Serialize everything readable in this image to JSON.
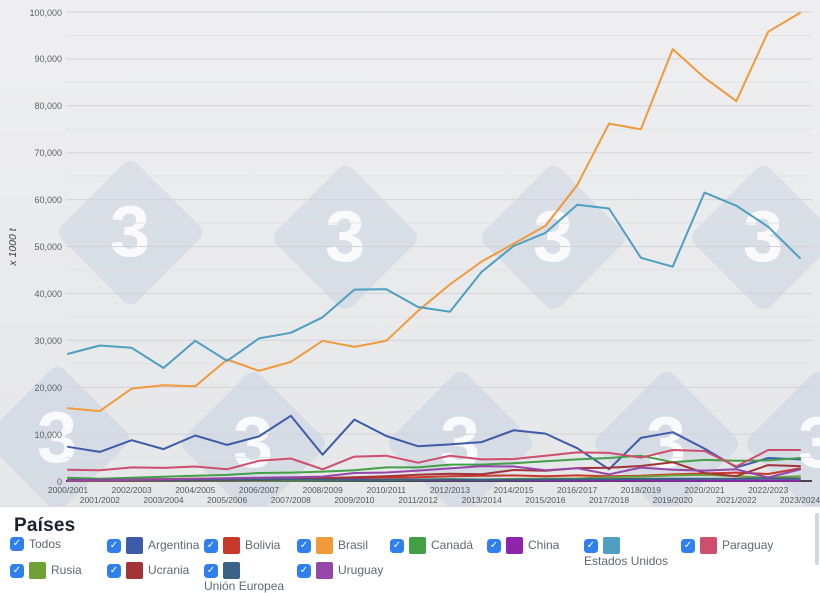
{
  "chart_data": {
    "type": "line",
    "title": "",
    "xlabel": "",
    "ylabel": "x 1000 t",
    "ylim": [
      0,
      100000
    ],
    "y_tick_step": 10000,
    "y_minor_step": 5000,
    "grid": true,
    "legend_position": "bottom",
    "y_tick_labels": [
      "0",
      "10,000",
      "20,000",
      "30,000",
      "40,000",
      "50,000",
      "60,000",
      "70,000",
      "80,000",
      "90,000",
      "100,000"
    ],
    "categories": [
      "2000/2001",
      "2001/2002",
      "2002/2003",
      "2003/2004",
      "2004/2005",
      "2005/2006",
      "2006/2007",
      "2007/2008",
      "2008/2009",
      "2009/2010",
      "2010/2011",
      "2011/2012",
      "2012/2013",
      "2013/2014",
      "2014/2015",
      "2015/2016",
      "2016/2017",
      "2017/2018",
      "2018/2019",
      "2019/2020",
      "2020/2021",
      "2021/2022",
      "2022/2023",
      "2023/2024"
    ],
    "series": [
      {
        "name": "Argentina",
        "color": "#3D5BA9",
        "values": [
          7300,
          6200,
          8700,
          6800,
          9700,
          7700,
          9500,
          13900,
          5600,
          13100,
          9600,
          7400,
          7800,
          8300,
          10800,
          10100,
          7000,
          2500,
          9200,
          10400,
          6900,
          2900,
          4900,
          4600
        ]
      },
      {
        "name": "Bolivia",
        "color": "#C8392B",
        "values": [
          300,
          300,
          400,
          400,
          500,
          500,
          400,
          500,
          600,
          700,
          700,
          800,
          1000,
          1100,
          1200,
          1000,
          1200,
          1000,
          1100,
          1400,
          1600,
          1800,
          1500,
          2700
        ]
      },
      {
        "name": "Brasil",
        "color": "#F09A3C",
        "values": [
          15500,
          14900,
          19700,
          20400,
          20200,
          25900,
          23500,
          25400,
          29900,
          28600,
          29900,
          36300,
          41900,
          46800,
          50600,
          54400,
          63100,
          76200,
          75000,
          92100,
          86000,
          81000,
          95800,
          99800
        ]
      },
      {
        "name": "Canadá",
        "color": "#43A047",
        "values": [
          700,
          500,
          700,
          900,
          1100,
          1300,
          1700,
          1800,
          2000,
          2300,
          2900,
          2900,
          3500,
          3500,
          3800,
          4200,
          4600,
          4900,
          5400,
          4000,
          4500,
          4300,
          4400,
          4900
        ]
      },
      {
        "name": "China",
        "color": "#8E24AA",
        "values": [
          210,
          250,
          270,
          310,
          350,
          380,
          410,
          450,
          390,
          340,
          210,
          250,
          200,
          240,
          160,
          130,
          110,
          130,
          130,
          110,
          80,
          90,
          80,
          90
        ]
      },
      {
        "name": "Estados Unidos",
        "color": "#4E9FC0",
        "values": [
          27100,
          28900,
          28400,
          24100,
          29900,
          25600,
          30400,
          31600,
          34900,
          40800,
          40900,
          37100,
          36100,
          44600,
          50100,
          52900,
          58900,
          58100,
          47600,
          45700,
          61500,
          58700,
          54200,
          47500
        ]
      },
      {
        "name": "Paraguay",
        "color": "#CE4E6E",
        "values": [
          2400,
          2300,
          2900,
          2800,
          3100,
          2500,
          4300,
          4800,
          2500,
          5200,
          5400,
          3900,
          5400,
          4600,
          4700,
          5400,
          6100,
          6000,
          5000,
          6600,
          6400,
          3100,
          6600,
          6600
        ]
      },
      {
        "name": "Rusia",
        "color": "#6FA235",
        "values": [
          20,
          20,
          30,
          40,
          50,
          50,
          60,
          80,
          120,
          160,
          220,
          300,
          420,
          330,
          440,
          520,
          540,
          830,
          940,
          1200,
          1300,
          1000,
          730,
          1020
        ]
      },
      {
        "name": "Ucrania",
        "color": "#A23438",
        "values": [
          50,
          60,
          80,
          100,
          130,
          160,
          210,
          310,
          620,
          810,
          1020,
          1340,
          1560,
          1440,
          2340,
          2200,
          2740,
          2840,
          3200,
          4000,
          1700,
          1050,
          3400,
          3180
        ]
      },
      {
        "name": "Unión Europea",
        "color": "#3A6186",
        "values": [
          150,
          160,
          190,
          210,
          240,
          260,
          290,
          300,
          260,
          210,
          250,
          300,
          310,
          260,
          300,
          350,
          390,
          410,
          440,
          490,
          460,
          500,
          540,
          510
        ]
      },
      {
        "name": "Uruguay",
        "color": "#9447A8",
        "values": [
          110,
          160,
          260,
          360,
          460,
          580,
          710,
          810,
          930,
          1700,
          1820,
          2220,
          2680,
          3180,
          3100,
          2300,
          2720,
          1400,
          2860,
          2400,
          2220,
          2500,
          740,
          2480
        ]
      }
    ]
  },
  "legend": {
    "title": "Países",
    "select_all_label": "Todos",
    "checkbox_color": "#2F80ED",
    "all_checked": true
  },
  "watermark": {
    "glyph": "3"
  }
}
